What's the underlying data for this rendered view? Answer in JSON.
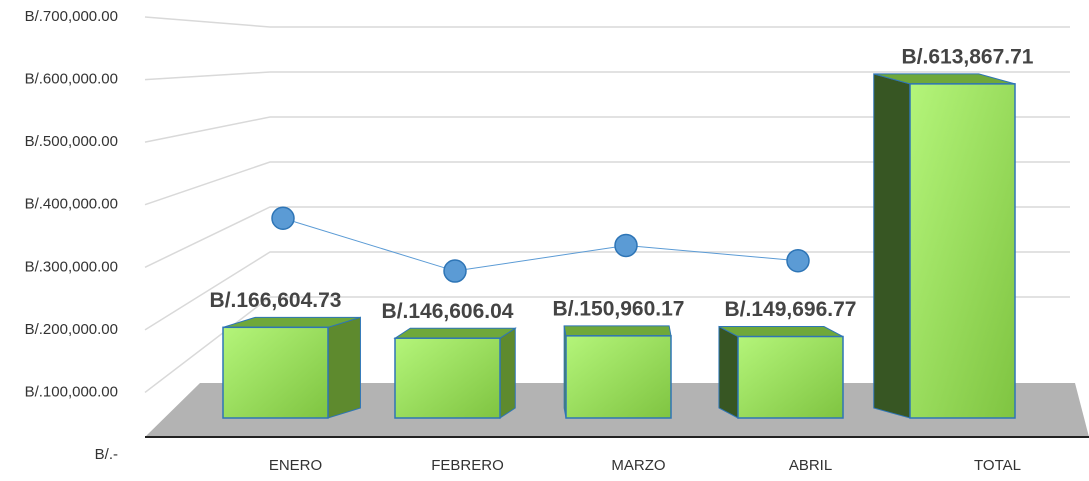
{
  "chart_data": {
    "type": "bar",
    "categories": [
      "ENERO",
      "FEBRERO",
      "MARZO",
      "ABRIL",
      "TOTAL"
    ],
    "series": [
      {
        "type": "bar",
        "color": "#92d050",
        "values": [
          166604.73,
          146606.04,
          150960.17,
          149696.77,
          613867.71
        ],
        "value_labels": [
          "B/.166,604.73",
          "B/.146,606.04",
          "B/.150,960.17",
          "B/.149,696.77",
          "B/.613,867.71"
        ]
      },
      {
        "type": "line",
        "color": "#5b9bd5",
        "values": [
          367000,
          270000,
          317000,
          289000,
          null
        ]
      }
    ],
    "ylim": [
      0,
      700000
    ],
    "yticks": [
      {
        "value": 0,
        "label": "B/.-"
      },
      {
        "value": 100000,
        "label": "B/.100,000.00"
      },
      {
        "value": 200000,
        "label": "B/.200,000.00"
      },
      {
        "value": 300000,
        "label": "B/.300,000.00"
      },
      {
        "value": 400000,
        "label": "B/.400,000.00"
      },
      {
        "value": 500000,
        "label": "B/.500,000.00"
      },
      {
        "value": 600000,
        "label": "B/.600,000.00"
      },
      {
        "value": 700000,
        "label": "B/.700,000.00"
      }
    ],
    "grid": true
  }
}
